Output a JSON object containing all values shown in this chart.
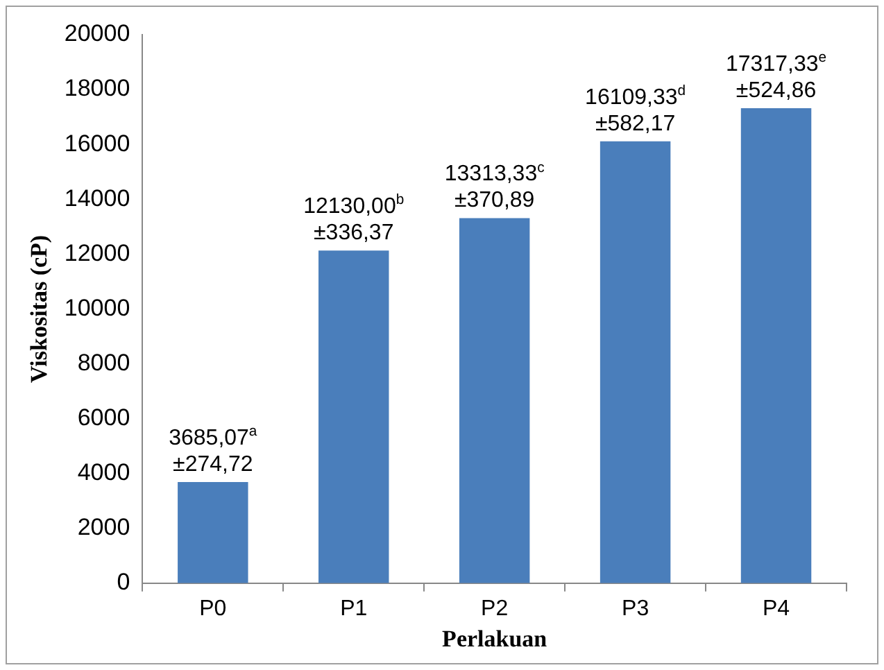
{
  "chart_data": {
    "type": "bar",
    "xlabel": "Perlakuan",
    "ylabel": "Viskositas (cP)",
    "categories": [
      "P0",
      "P1",
      "P2",
      "P3",
      "P4"
    ],
    "values": [
      3685.07,
      12130.0,
      13313.33,
      16109.33,
      17317.33
    ],
    "value_labels": [
      "3685,07$^{a}$\n±274,72",
      "12130,00$^{b}$\n±336,37",
      "13313,33$^{c}$\n±370,89",
      "16109,33$^{d}$\n±582,17",
      "17317,33$^{e}$\n±524,86"
    ],
    "color": "#4a7ebb",
    "ylim": [
      0,
      20000
    ],
    "yticks": [
      0,
      2000,
      4000,
      6000,
      8000,
      10000,
      12000,
      14000,
      16000,
      18000,
      20000
    ],
    "grid": false,
    "legend": false
  }
}
